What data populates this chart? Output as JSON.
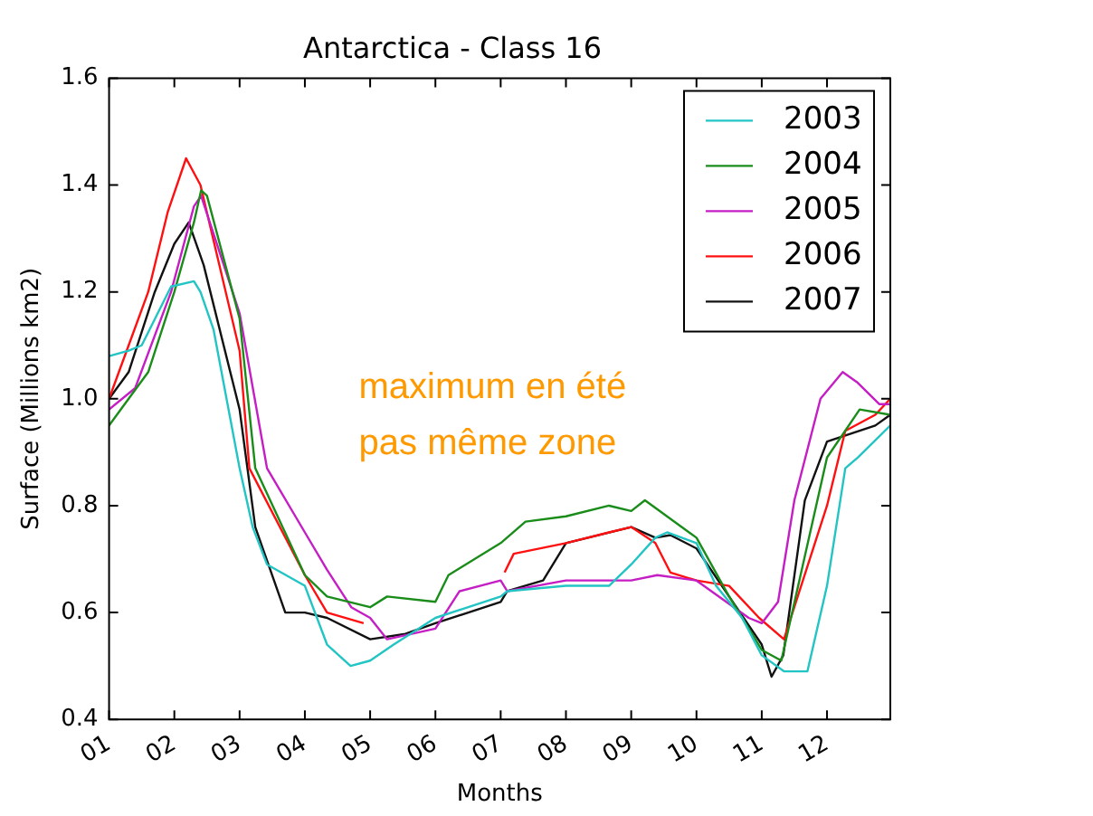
{
  "chart_data": {
    "type": "line",
    "title": "Antarctica - Class 16",
    "xlabel": "Months",
    "ylabel": "Surface (Millions km2)",
    "annotations": [
      "maximum en été",
      "pas même zone"
    ],
    "xlim": [
      1,
      12.97
    ],
    "ylim": [
      0.4,
      1.6
    ],
    "xticks": [
      {
        "value": 1,
        "label": "01"
      },
      {
        "value": 2,
        "label": "02"
      },
      {
        "value": 3,
        "label": "03"
      },
      {
        "value": 4,
        "label": "04"
      },
      {
        "value": 5,
        "label": "05"
      },
      {
        "value": 6,
        "label": "06"
      },
      {
        "value": 7,
        "label": "07"
      },
      {
        "value": 8,
        "label": "08"
      },
      {
        "value": 9,
        "label": "09"
      },
      {
        "value": 10,
        "label": "10"
      },
      {
        "value": 11,
        "label": "11"
      },
      {
        "value": 12,
        "label": "12"
      }
    ],
    "yticks": [
      0.4,
      0.6,
      0.8,
      {
        "value": 1,
        "label": "1.0"
      },
      1.2,
      1.4,
      1.6
    ],
    "legend": "top right",
    "grid": false,
    "marker": "none",
    "line_style": "solid",
    "series": [
      {
        "name": "2003",
        "color": "#22c4c4",
        "x": [
          1,
          1.3,
          1.5,
          1.95,
          2.3,
          2.4,
          2.6,
          3,
          3.2,
          3.42,
          4,
          4.34,
          4.7,
          5,
          5.36,
          6,
          7,
          7.1,
          8,
          8.66,
          9,
          9.37,
          9.55,
          10,
          10.3,
          10.7,
          11,
          11.34,
          11.7,
          12,
          12.28,
          12.47,
          12.97
        ],
        "values": [
          1.08,
          1.09,
          1.1,
          1.21,
          1.22,
          1.2,
          1.13,
          0.87,
          0.76,
          0.69,
          0.65,
          0.54,
          0.5,
          0.51,
          0.54,
          0.59,
          0.63,
          0.64,
          0.65,
          0.65,
          0.69,
          0.74,
          0.75,
          0.73,
          0.65,
          0.59,
          0.52,
          0.49,
          0.49,
          0.65,
          0.87,
          0.89,
          0.95
        ]
      },
      {
        "name": "2004",
        "color": "#1a8c1a",
        "x": [
          1,
          1.3,
          1.6,
          2,
          2.3,
          2.41,
          2.5,
          3,
          3.24,
          4,
          4.34,
          5,
          5.26,
          6,
          6.2,
          7,
          7.38,
          8,
          8.66,
          9,
          9.21,
          10,
          10.5,
          11,
          11.3,
          12,
          12.5,
          12.97
        ],
        "values": [
          0.95,
          1.0,
          1.05,
          1.2,
          1.33,
          1.39,
          1.38,
          1.15,
          0.87,
          0.67,
          0.63,
          0.61,
          0.63,
          0.62,
          0.67,
          0.73,
          0.77,
          0.78,
          0.8,
          0.79,
          0.81,
          0.74,
          0.63,
          0.53,
          0.51,
          0.89,
          0.98,
          0.97
        ]
      },
      {
        "name": "2005",
        "color": "#c41ec4",
        "x": [
          1,
          1.4,
          1.95,
          2.3,
          2.41,
          3,
          3.42,
          4,
          4.34,
          4.71,
          5,
          5.26,
          6,
          6.37,
          7,
          7.1,
          8,
          9,
          9.4,
          10,
          10.8,
          11,
          11.25,
          11.5,
          11.9,
          12.24,
          12.47,
          12.8,
          12.97
        ],
        "values": [
          0.98,
          1.02,
          1.2,
          1.36,
          1.38,
          1.16,
          0.87,
          0.75,
          0.68,
          0.61,
          0.59,
          0.55,
          0.57,
          0.64,
          0.66,
          0.64,
          0.66,
          0.66,
          0.67,
          0.66,
          0.59,
          0.58,
          0.62,
          0.81,
          1.0,
          1.05,
          1.03,
          0.99,
          0.99
        ]
      },
      {
        "name": "2006",
        "color": "#ff1010",
        "x": [
          1,
          1.3,
          1.6,
          1.9,
          2.18,
          2.4,
          3,
          3.15,
          4,
          4.34,
          4.9,
          5.5,
          7.06,
          7.2,
          8,
          8.66,
          9,
          9.37,
          9.6,
          10,
          10.5,
          10.96,
          11.34,
          12,
          12.28,
          12.74,
          12.97
        ],
        "values": [
          1.0,
          1.1,
          1.2,
          1.35,
          1.45,
          1.4,
          1.09,
          0.87,
          0.67,
          0.6,
          0.58,
          null,
          0.675,
          0.71,
          0.73,
          0.75,
          0.76,
          0.73,
          0.675,
          0.66,
          0.65,
          0.59,
          0.55,
          0.8,
          0.94,
          0.97,
          1.0
        ]
      },
      {
        "name": "2007",
        "color": "#111111",
        "x": [
          1,
          1.3,
          1.7,
          2,
          2.22,
          2.45,
          3,
          3.24,
          3.7,
          4,
          4.34,
          5,
          5.54,
          6,
          7,
          7.1,
          7.65,
          8,
          9,
          9.37,
          9.6,
          10,
          10.5,
          11,
          11.15,
          11.33,
          11.66,
          12,
          12.74,
          12.97
        ],
        "values": [
          1.0,
          1.05,
          1.2,
          1.29,
          1.33,
          1.25,
          0.98,
          0.76,
          0.6,
          0.6,
          0.59,
          0.55,
          0.56,
          0.58,
          0.62,
          0.64,
          0.66,
          0.73,
          0.76,
          0.74,
          0.745,
          0.72,
          0.63,
          0.54,
          0.48,
          0.52,
          0.81,
          0.92,
          0.95,
          0.97
        ]
      }
    ]
  }
}
